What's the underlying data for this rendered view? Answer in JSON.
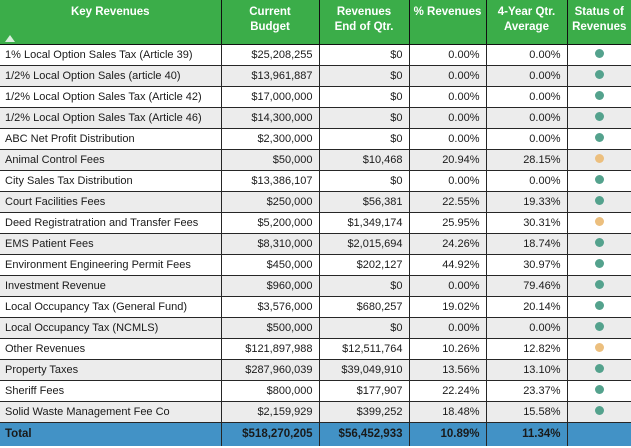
{
  "theme": {
    "header_bg": "#3BAD49",
    "header_text": "#FFFFFF",
    "total_row_bg": "#4292C6",
    "row_alt_bg": "#ECECEC",
    "grid_line": "#262626",
    "status_good": "#54A28D",
    "status_caution": "#ECBF7E"
  },
  "table": {
    "columns": [
      {
        "key": "name",
        "label": "Key Revenues"
      },
      {
        "key": "budget",
        "label": "Current\nBudget"
      },
      {
        "key": "end_of_qtr",
        "label": "Revenues\nEnd of Qtr."
      },
      {
        "key": "pct_revenues",
        "label": "% Revenues"
      },
      {
        "key": "four_year_avg",
        "label": "4-Year Qtr.\nAverage"
      },
      {
        "key": "status",
        "label": "Status of\nRevenues"
      }
    ],
    "sort": {
      "column": "Key Revenues",
      "direction": "ascending"
    },
    "rows": [
      {
        "name": "1% Local Option Sales Tax (Article 39)",
        "budget": "$25,208,255",
        "end_of_qtr": "$0",
        "pct_revenues": "0.00%",
        "four_year_avg": "0.00%",
        "status": "good"
      },
      {
        "name": "1/2% Local Option Sales (article 40)",
        "budget": "$13,961,887",
        "end_of_qtr": "$0",
        "pct_revenues": "0.00%",
        "four_year_avg": "0.00%",
        "status": "good"
      },
      {
        "name": "1/2% Local Option Sales Tax (Article 42)",
        "budget": "$17,000,000",
        "end_of_qtr": "$0",
        "pct_revenues": "0.00%",
        "four_year_avg": "0.00%",
        "status": "good"
      },
      {
        "name": "1/2% Local Option Sales Tax (Article 46)",
        "budget": "$14,300,000",
        "end_of_qtr": "$0",
        "pct_revenues": "0.00%",
        "four_year_avg": "0.00%",
        "status": "good"
      },
      {
        "name": "ABC Net Profit Distribution",
        "budget": "$2,300,000",
        "end_of_qtr": "$0",
        "pct_revenues": "0.00%",
        "four_year_avg": "0.00%",
        "status": "good"
      },
      {
        "name": "Animal Control Fees",
        "budget": "$50,000",
        "end_of_qtr": "$10,468",
        "pct_revenues": "20.94%",
        "four_year_avg": "28.15%",
        "status": "caution"
      },
      {
        "name": "City Sales Tax Distribution",
        "budget": "$13,386,107",
        "end_of_qtr": "$0",
        "pct_revenues": "0.00%",
        "four_year_avg": "0.00%",
        "status": "good"
      },
      {
        "name": "Court Facilities Fees",
        "budget": "$250,000",
        "end_of_qtr": "$56,381",
        "pct_revenues": "22.55%",
        "four_year_avg": "19.33%",
        "status": "good"
      },
      {
        "name": "Deed Registratration and Transfer Fees",
        "budget": "$5,200,000",
        "end_of_qtr": "$1,349,174",
        "pct_revenues": "25.95%",
        "four_year_avg": "30.31%",
        "status": "caution"
      },
      {
        "name": "EMS Patient Fees",
        "budget": "$8,310,000",
        "end_of_qtr": "$2,015,694",
        "pct_revenues": "24.26%",
        "four_year_avg": "18.74%",
        "status": "good"
      },
      {
        "name": "Environment Engineering Permit Fees",
        "budget": "$450,000",
        "end_of_qtr": "$202,127",
        "pct_revenues": "44.92%",
        "four_year_avg": "30.97%",
        "status": "good"
      },
      {
        "name": "Investment Revenue",
        "budget": "$960,000",
        "end_of_qtr": "$0",
        "pct_revenues": "0.00%",
        "four_year_avg": "79.46%",
        "status": "good"
      },
      {
        "name": "Local Occupancy Tax (General Fund)",
        "budget": "$3,576,000",
        "end_of_qtr": "$680,257",
        "pct_revenues": "19.02%",
        "four_year_avg": "20.14%",
        "status": "good"
      },
      {
        "name": "Local Occupancy Tax (NCMLS)",
        "budget": "$500,000",
        "end_of_qtr": "$0",
        "pct_revenues": "0.00%",
        "four_year_avg": "0.00%",
        "status": "good"
      },
      {
        "name": "Other Revenues",
        "budget": "$121,897,988",
        "end_of_qtr": "$12,511,764",
        "pct_revenues": "10.26%",
        "four_year_avg": "12.82%",
        "status": "caution"
      },
      {
        "name": "Property Taxes",
        "budget": "$287,960,039",
        "end_of_qtr": "$39,049,910",
        "pct_revenues": "13.56%",
        "four_year_avg": "13.10%",
        "status": "good"
      },
      {
        "name": "Sheriff Fees",
        "budget": "$800,000",
        "end_of_qtr": "$177,907",
        "pct_revenues": "22.24%",
        "four_year_avg": "23.37%",
        "status": "good"
      },
      {
        "name": "Solid Waste Management Fee Co",
        "budget": "$2,159,929",
        "end_of_qtr": "$399,252",
        "pct_revenues": "18.48%",
        "four_year_avg": "15.58%",
        "status": "good"
      }
    ],
    "total": {
      "name": "Total",
      "budget": "$518,270,205",
      "end_of_qtr": "$56,452,933",
      "pct_revenues": "10.89%",
      "four_year_avg": "11.34%"
    }
  }
}
